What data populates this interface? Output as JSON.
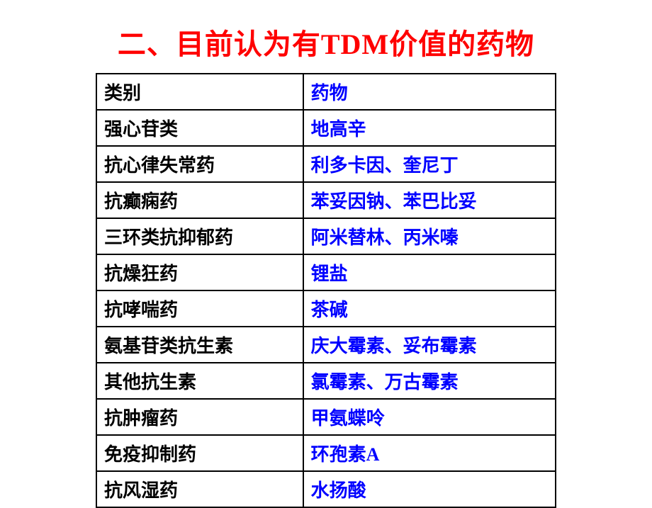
{
  "title": {
    "text": "二、目前认为有TDM价值的药物",
    "color": "#ff0000",
    "fontsize": 40
  },
  "table": {
    "cell_fontsize": 26,
    "left_color": "#000000",
    "right_color": "#0000ff",
    "border_color": "#000000",
    "rows": [
      {
        "left": "类别",
        "right": "药物"
      },
      {
        "left": "强心苷类",
        "right": "地高辛"
      },
      {
        "left": "抗心律失常药",
        "right": "利多卡因、奎尼丁"
      },
      {
        "left": "抗癫痫药",
        "right": "苯妥因钠、苯巴比妥"
      },
      {
        "left": "三环类抗抑郁药",
        "right": "阿米替林、丙米嗪"
      },
      {
        "left": "抗燥狂药",
        "right": "锂盐"
      },
      {
        "left": "抗哮喘药",
        "right": "茶碱"
      },
      {
        "left": "氨基苷类抗生素",
        "right": "庆大霉素、妥布霉素"
      },
      {
        "left": "其他抗生素",
        "right": "氯霉素、万古霉素"
      },
      {
        "left": "抗肿瘤药",
        "right": "甲氨蝶呤"
      },
      {
        "left": "免疫抑制药",
        "right": "环孢素A"
      },
      {
        "left": "抗风湿药",
        "right": "水扬酸"
      }
    ]
  }
}
